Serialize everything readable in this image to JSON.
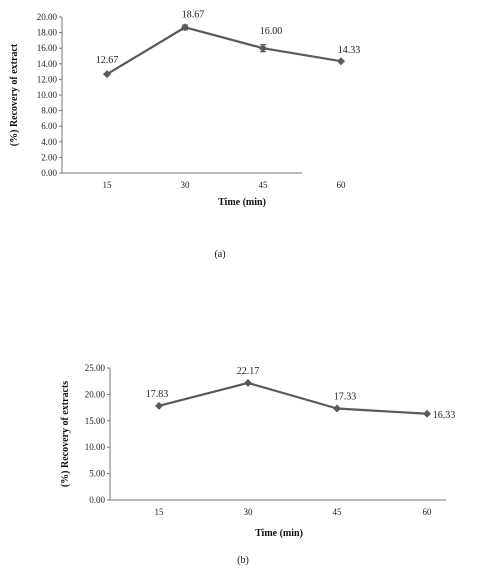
{
  "chart_data": [
    {
      "type": "line",
      "caption": "(a)",
      "xlabel": "Time (min)",
      "ylabel": "(%) Recovery of extract",
      "categories": [
        "15",
        "30",
        "45",
        "60"
      ],
      "values": [
        12.67,
        18.67,
        16.0,
        14.33
      ],
      "value_labels": [
        "12.67",
        "18.67",
        "16.00",
        "14.33"
      ],
      "ylim": [
        0,
        20
      ],
      "yticks": [
        "0.00",
        "2.00",
        "4.00",
        "6.00",
        "8.00",
        "10.00",
        "12.00",
        "14.00",
        "16.00",
        "18.00",
        "20.00"
      ],
      "grid": false,
      "error_bars": true,
      "marker": "diamond",
      "color": "#5a5a5a"
    },
    {
      "type": "line",
      "caption": "(b)",
      "xlabel": "Time (min)",
      "ylabel": "(%) Recovery of extracts",
      "categories": [
        "15",
        "30",
        "45",
        "60"
      ],
      "values": [
        17.83,
        22.17,
        17.33,
        16.33
      ],
      "value_labels": [
        "17.83",
        "22.17",
        "17.33",
        "16.33"
      ],
      "ylim": [
        0,
        25
      ],
      "yticks": [
        "0.00",
        "5.00",
        "10.00",
        "15.00",
        "20.00",
        "25.00"
      ],
      "grid": false,
      "error_bars": false,
      "marker": "diamond",
      "color": "#5a5a5a"
    }
  ]
}
